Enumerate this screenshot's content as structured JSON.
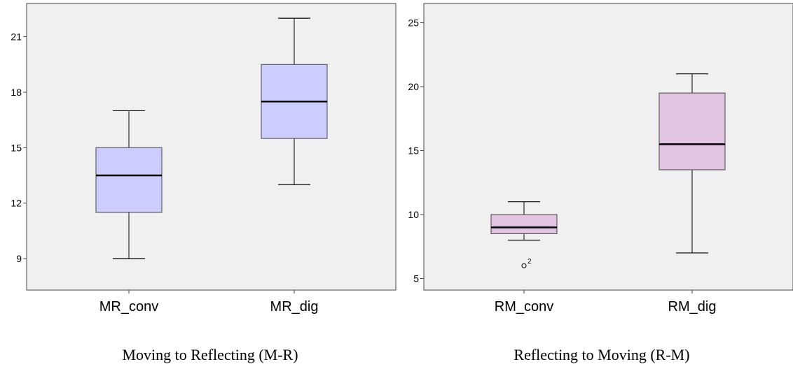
{
  "chart_data": [
    {
      "type": "box",
      "caption": "Moving to Reflecting (M-R)",
      "ylim": [
        7.3,
        22.8
      ],
      "yticks": [
        9,
        12,
        15,
        18,
        21
      ],
      "background": "#f0f0f0",
      "box_color": "#ccccff",
      "categories": [
        "MR_conv",
        "MR_dig"
      ],
      "boxes": [
        {
          "name": "MR_conv",
          "min": 9,
          "q1": 11.5,
          "median": 13.5,
          "q3": 15,
          "max": 17,
          "outliers": []
        },
        {
          "name": "MR_dig",
          "min": 13,
          "q1": 15.5,
          "median": 17.5,
          "q3": 19.5,
          "max": 22,
          "outliers": []
        }
      ]
    },
    {
      "type": "box",
      "caption": "Reflecting to Moving (R-M)",
      "ylim": [
        4.1,
        26.5
      ],
      "yticks": [
        5,
        10,
        15,
        20,
        25
      ],
      "background": "#f0f0f0",
      "box_color": "#e1c4e1",
      "categories": [
        "RM_conv",
        "RM_dig"
      ],
      "boxes": [
        {
          "name": "RM_conv",
          "min": 8,
          "q1": 8.5,
          "median": 9,
          "q3": 10,
          "max": 11,
          "outliers": [
            {
              "value": 6,
              "label": "2"
            }
          ]
        },
        {
          "name": "RM_dig",
          "min": 7,
          "q1": 13.5,
          "median": 15.5,
          "q3": 19.5,
          "max": 21,
          "outliers": []
        }
      ]
    }
  ]
}
